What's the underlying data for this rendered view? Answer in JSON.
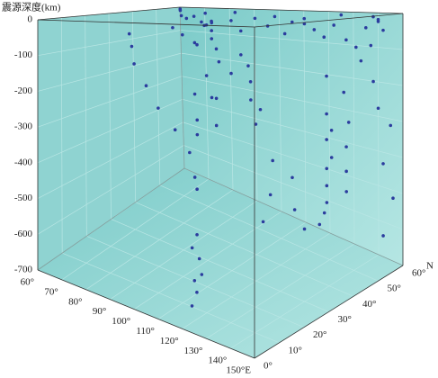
{
  "chart_data": {
    "type": "scatter3d",
    "z_label": "震源深度(km)",
    "y_label": "N",
    "xlim": [
      60,
      150
    ],
    "ylim": [
      0,
      60
    ],
    "zlim": [
      -700,
      0
    ],
    "xticks": [
      {
        "value": 60,
        "label": "60°"
      },
      {
        "value": 70,
        "label": "70°"
      },
      {
        "value": 80,
        "label": "80°"
      },
      {
        "value": 90,
        "label": "90°"
      },
      {
        "value": 100,
        "label": "100°"
      },
      {
        "value": 110,
        "label": "110°"
      },
      {
        "value": 120,
        "label": "120°"
      },
      {
        "value": 130,
        "label": "130°"
      },
      {
        "value": 140,
        "label": "140°"
      },
      {
        "value": 150,
        "label": "150°E"
      }
    ],
    "yticks": [
      {
        "value": 0,
        "label": "0°"
      },
      {
        "value": 10,
        "label": "10°"
      },
      {
        "value": 20,
        "label": "20°"
      },
      {
        "value": 30,
        "label": "30°"
      },
      {
        "value": 40,
        "label": "40°"
      },
      {
        "value": 50,
        "label": "50°"
      },
      {
        "value": 60,
        "label": "60°"
      }
    ],
    "zticks": [
      0,
      -100,
      -200,
      -300,
      -400,
      -500,
      -600,
      -700
    ],
    "grid": true,
    "color": "#2b3c9e",
    "pane_color": "#8fd3d1",
    "x": [
      62,
      63,
      75,
      80,
      85,
      90,
      95,
      100,
      102,
      104,
      98,
      95,
      92,
      100,
      105,
      110,
      115,
      120,
      121,
      122,
      125,
      130,
      132,
      135,
      138,
      140,
      142,
      144,
      146,
      148,
      150,
      150,
      145,
      140,
      130,
      120,
      110,
      100,
      90,
      75,
      95,
      97,
      100,
      105,
      110,
      115,
      120,
      125,
      126,
      124,
      122,
      120,
      118,
      120,
      122,
      121,
      123,
      122,
      124,
      119,
      141,
      140,
      139,
      138,
      137,
      136,
      135,
      134,
      137,
      139,
      142,
      143,
      141,
      140,
      139,
      145,
      147,
      146,
      148,
      150,
      149,
      150,
      148,
      105,
      108,
      110,
      112,
      128,
      130,
      132,
      128,
      126,
      100,
      96,
      115,
      118,
      135,
      138,
      140
    ],
    "y": [
      58,
      57,
      45,
      42,
      40,
      38,
      35,
      32,
      30,
      28,
      28,
      25,
      24,
      25,
      24,
      22,
      25,
      24,
      23,
      25,
      30,
      32,
      33,
      35,
      36,
      38,
      40,
      43,
      45,
      47,
      50,
      52,
      55,
      58,
      55,
      50,
      48,
      50,
      52,
      55,
      3,
      2,
      0,
      0,
      0,
      2,
      3,
      5,
      8,
      10,
      12,
      15,
      8,
      6,
      5,
      4,
      3,
      2,
      4,
      5,
      38,
      39,
      40,
      41,
      42,
      43,
      43,
      42,
      44,
      42,
      44,
      45,
      46,
      47,
      48,
      48,
      50,
      52,
      52,
      55,
      53,
      56,
      54,
      20,
      18,
      15,
      14,
      20,
      22,
      25,
      28,
      27,
      40,
      36,
      35,
      30,
      30,
      28,
      30
    ],
    "z": [
      -5,
      -10,
      -15,
      -20,
      -10,
      -25,
      -30,
      -15,
      -40,
      -60,
      -80,
      -50,
      -30,
      -70,
      -20,
      -10,
      -5,
      -30,
      -90,
      -120,
      -20,
      -40,
      -10,
      -15,
      -30,
      -50,
      -20,
      -60,
      -80,
      -30,
      -10,
      -40,
      -20,
      -10,
      -5,
      -15,
      -10,
      -20,
      -5,
      -15,
      -30,
      -60,
      -100,
      -150,
      -200,
      -250,
      -300,
      -120,
      -60,
      -180,
      -250,
      -100,
      -400,
      -500,
      -550,
      -600,
      -620,
      -650,
      -580,
      -530,
      -150,
      -250,
      -320,
      -400,
      -450,
      -500,
      -530,
      -560,
      -380,
      -300,
      -200,
      -280,
      -350,
      -420,
      -480,
      -120,
      -80,
      -180,
      -250,
      -300,
      -400,
      -500,
      -600,
      -200,
      -300,
      -400,
      -250,
      -150,
      -220,
      -350,
      -450,
      -520,
      -180,
      -250,
      -300,
      -220,
      -400,
      -470,
      -520
    ]
  }
}
